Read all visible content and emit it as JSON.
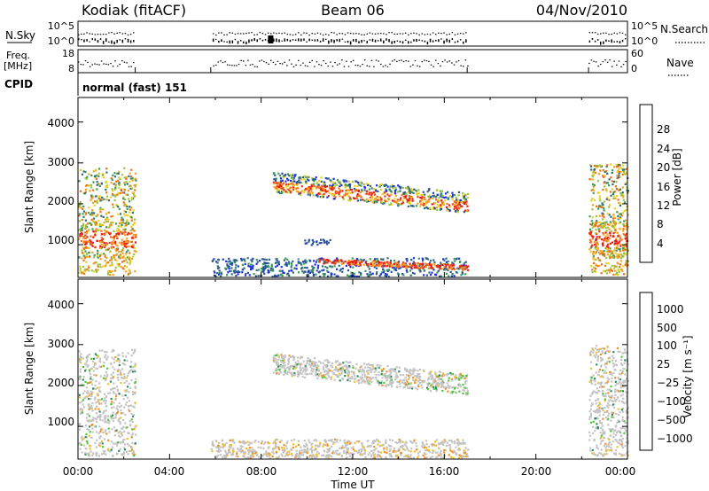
{
  "header": {
    "station": "Kodiak (fitACF)",
    "beam": "Beam 06",
    "date": "04/Nov/2010"
  },
  "strips": {
    "nsky_label": "N.Sky",
    "nsky_ticks": [
      "10^5",
      "10^0"
    ],
    "nsearch_label": "N.Search",
    "nsearch_ticks": [
      "10^5",
      "10^0"
    ],
    "freq_label_1": "Freq.",
    "freq_label_2": "[MHz]",
    "freq_ticks": [
      "18",
      "8"
    ],
    "nave_label": "Nave",
    "nave_ticks": [
      "60",
      "0"
    ],
    "cpid_label": "CPID",
    "cpid_value": "normal (fast) 151"
  },
  "time_axis": {
    "title": "Time UT",
    "ticks": [
      "00:00",
      "04:00",
      "08:00",
      "12:00",
      "16:00",
      "20:00",
      "00:00"
    ]
  },
  "chart_data": [
    {
      "type": "heatmap",
      "name": "power",
      "ylabel": "Slant Range [km]",
      "yticks": [
        "1000",
        "2000",
        "3000",
        "4000"
      ],
      "ylim": [
        200,
        4600
      ],
      "xlim_hours": [
        0,
        24
      ],
      "colorbar": {
        "title": "Power [dB]",
        "ticks": [
          "4",
          "8",
          "12",
          "16",
          "20",
          "24",
          "28"
        ],
        "colors": [
          "#1f2fe6",
          "#2a4f9e",
          "#2c6e78",
          "#3a9a5a",
          "#9ac43a",
          "#e8d020",
          "#f4a020",
          "#f06e14",
          "#e8321a",
          "#e81414"
        ]
      },
      "echo_regions": [
        {
          "t": [
            0.0,
            2.5
          ],
          "range": [
            300,
            2900
          ],
          "level": "mixed, core 22-30 dB near 1000-1300 km"
        },
        {
          "t": [
            8.5,
            17.0
          ],
          "range": [
            1600,
            2800
          ],
          "level": "12-28 dB band, descending 2500 to 1900 km"
        },
        {
          "t": [
            5.8,
            17.0
          ],
          "range": [
            250,
            700
          ],
          "level": "4-12 dB with 24-30 dB layer near 400-600 km after 10:30"
        },
        {
          "t": [
            22.3,
            24.0
          ],
          "range": [
            300,
            3000
          ],
          "level": "mixed, core 22-30 dB near 1000-1300 km"
        }
      ]
    },
    {
      "type": "heatmap",
      "name": "velocity",
      "ylabel": "Slant Range [km]",
      "yticks": [
        "1000",
        "2000",
        "3000",
        "4000"
      ],
      "ylim": [
        200,
        4600
      ],
      "xlim_hours": [
        0,
        24
      ],
      "colorbar": {
        "title": "Velocity [m s⁻¹]",
        "ticks": [
          "1000",
          "500",
          "100",
          "25",
          "−25",
          "−100",
          "−500",
          "−1000"
        ],
        "colors": [
          "#1e4fc0",
          "#2e6ea8",
          "#2c8a5e",
          "#4ec83a",
          "#c8c8c8",
          "#f4c020",
          "#f49020",
          "#f05a14",
          "#e81414"
        ]
      },
      "echo_regions": [
        {
          "t": [
            0.0,
            2.5
          ],
          "range": [
            300,
            2900
          ],
          "level": "mostly ground scatter (grey), some orange near 2300 km"
        },
        {
          "t": [
            8.5,
            17.0
          ],
          "range": [
            1600,
            2800
          ],
          "level": "grey ground scatter band, green near 17:00"
        },
        {
          "t": [
            5.8,
            17.0
          ],
          "range": [
            250,
            700
          ],
          "level": "grey with orange patches"
        },
        {
          "t": [
            22.3,
            24.0
          ],
          "range": [
            300,
            3000
          ],
          "level": "grey with green/orange near 2400 km"
        }
      ]
    }
  ]
}
